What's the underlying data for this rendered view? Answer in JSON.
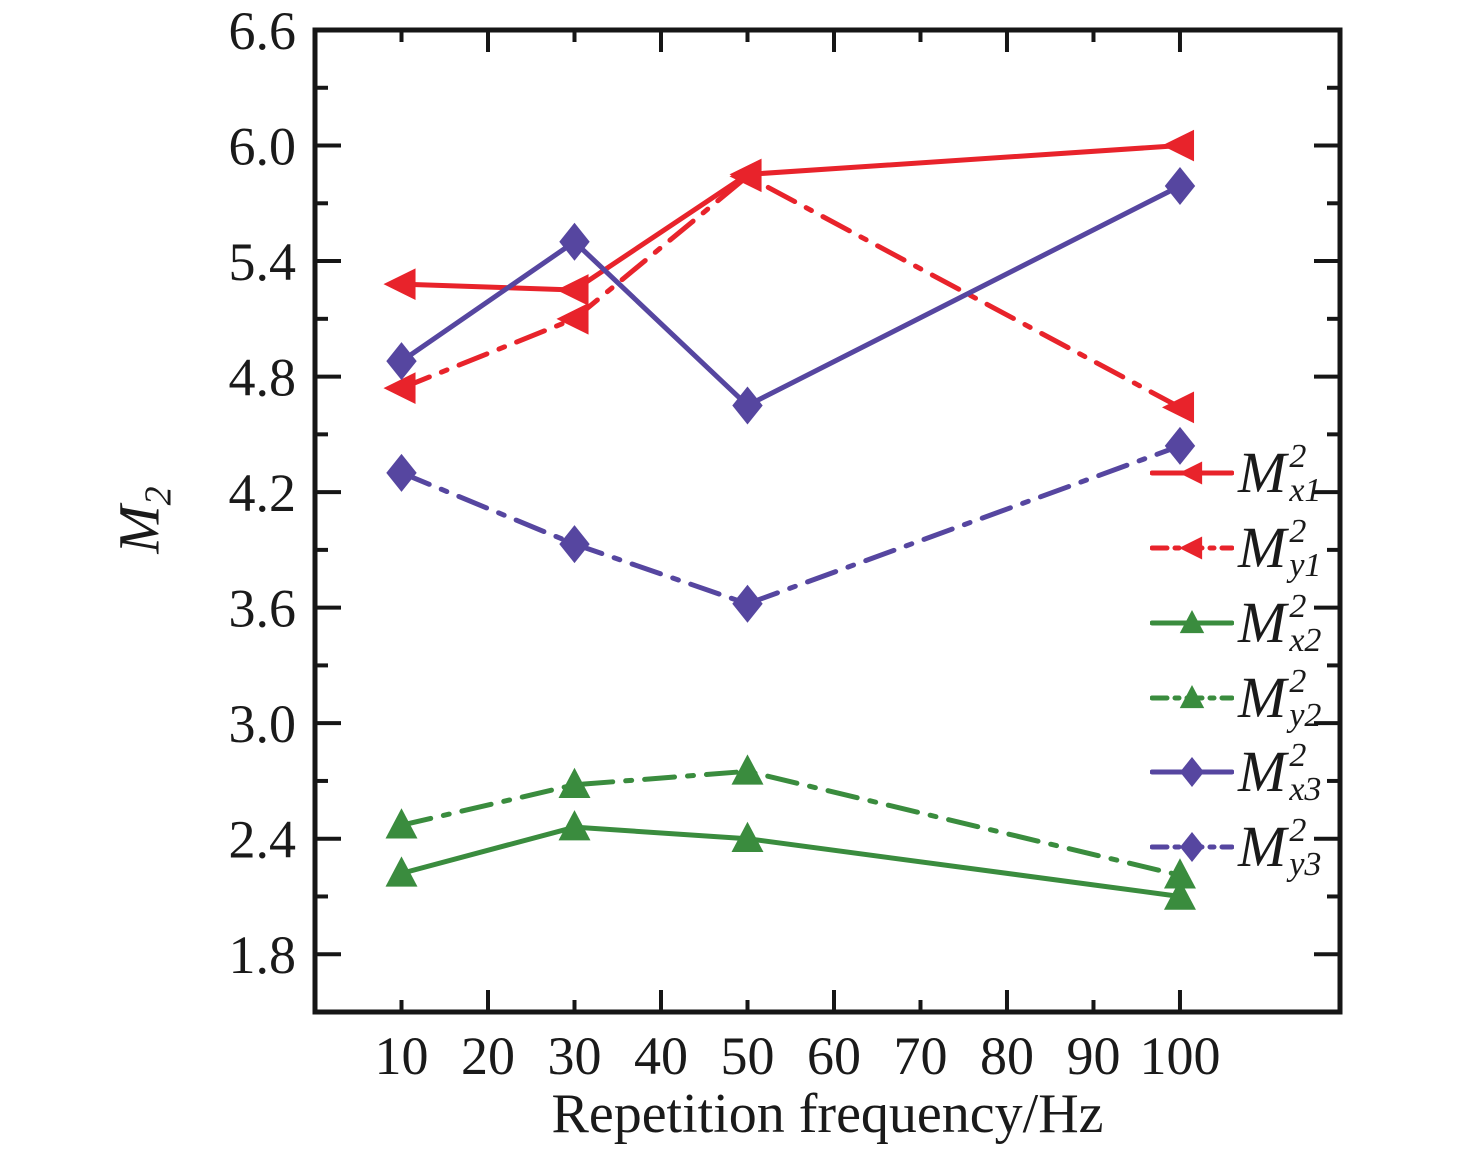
{
  "chart_data": {
    "type": "line",
    "title": "",
    "xlabel": "Repetition frequency/Hz",
    "ylabel": {
      "main": "M",
      "sub": "2"
    },
    "x": [
      10,
      30,
      50,
      100
    ],
    "series": [
      {
        "name": "M2_x1",
        "label": {
          "main": "M",
          "sup": "2",
          "sub": "x1"
        },
        "color": "#e8232b",
        "line": "solid",
        "marker": "triangle-left",
        "values": [
          5.28,
          5.25,
          5.85,
          6.0
        ]
      },
      {
        "name": "M2_y1",
        "label": {
          "main": "M",
          "sup": "2",
          "sub": "y1"
        },
        "color": "#e8232b",
        "line": "dashdot",
        "marker": "triangle-left",
        "values": [
          4.74,
          5.1,
          5.84,
          4.64
        ]
      },
      {
        "name": "M2_x2",
        "label": {
          "main": "M",
          "sup": "2",
          "sub": "x2"
        },
        "color": "#3a8c3e",
        "line": "solid",
        "marker": "triangle-up",
        "values": [
          2.22,
          2.46,
          2.4,
          2.1
        ]
      },
      {
        "name": "M2_y2",
        "label": {
          "main": "M",
          "sup": "2",
          "sub": "y2"
        },
        "color": "#3a8c3e",
        "line": "dashdot",
        "marker": "triangle-up",
        "values": [
          2.47,
          2.68,
          2.75,
          2.21
        ]
      },
      {
        "name": "M2_x3",
        "label": {
          "main": "M",
          "sup": "2",
          "sub": "x3"
        },
        "color": "#5646a0",
        "line": "solid",
        "marker": "diamond",
        "values": [
          4.88,
          5.5,
          4.65,
          5.79
        ]
      },
      {
        "name": "M2_y3",
        "label": {
          "main": "M",
          "sup": "2",
          "sub": "y3"
        },
        "color": "#5646a0",
        "line": "dashdot",
        "marker": "diamond",
        "values": [
          4.3,
          3.93,
          3.62,
          4.44
        ]
      }
    ],
    "x_tick_values": [
      10,
      20,
      30,
      40,
      50,
      60,
      70,
      80,
      90,
      100
    ],
    "x_tick_labels": [
      "10",
      "20",
      "30",
      "40",
      "50",
      "60",
      "70",
      "80",
      "90",
      "100"
    ],
    "x_major_ticks": [
      20,
      40,
      60,
      80,
      100
    ],
    "x_minor_ticks": [
      10,
      30,
      50,
      70,
      90
    ],
    "y_tick_values": [
      1.8,
      2.4,
      3.0,
      3.6,
      4.2,
      4.8,
      5.4,
      6.0,
      6.6
    ],
    "y_tick_labels": [
      "1.8",
      "2.4",
      "3.0",
      "3.6",
      "4.2",
      "4.8",
      "5.4",
      "6.0",
      "6.6"
    ],
    "y_major_ticks": [
      1.8,
      2.4,
      3.0,
      3.6,
      4.2,
      4.8,
      5.4,
      6.0
    ],
    "y_minor_ticks": [
      2.1,
      2.7,
      3.3,
      3.9,
      4.5,
      5.1,
      5.7,
      6.3
    ],
    "xlim": [
      0,
      118.5
    ],
    "ylim": [
      1.5,
      6.6
    ],
    "grid": false,
    "legend_position": "right-middle",
    "frame_color": "#161616",
    "text_color": "#1a1a1a"
  }
}
